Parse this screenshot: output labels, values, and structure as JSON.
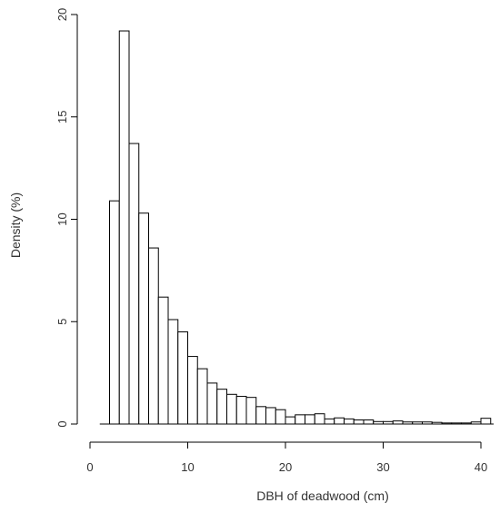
{
  "chart_data": {
    "type": "bar",
    "xlabel": "DBH of deadwood (cm)",
    "ylabel": "Density (%)",
    "xlim": [
      0,
      40
    ],
    "ylim": [
      0,
      20
    ],
    "xticks": [
      0,
      10,
      20,
      30,
      40
    ],
    "yticks": [
      0,
      5,
      10,
      15,
      20
    ],
    "xtick_labels": [
      "0",
      "10",
      "20",
      "30",
      "40"
    ],
    "ytick_labels": [
      "0",
      "5",
      "10",
      "15",
      "20"
    ],
    "bin_width": 1,
    "bin_starts": [
      2,
      3,
      4,
      5,
      6,
      7,
      8,
      9,
      10,
      11,
      12,
      13,
      14,
      15,
      16,
      17,
      18,
      19,
      20,
      21,
      22,
      23,
      24,
      25,
      26,
      27,
      28,
      29,
      30,
      31,
      32,
      33,
      34,
      35,
      36,
      37,
      38,
      39,
      40
    ],
    "values": [
      10.9,
      19.2,
      13.7,
      10.3,
      8.6,
      6.2,
      5.1,
      4.5,
      3.3,
      2.7,
      2.0,
      1.7,
      1.45,
      1.35,
      1.3,
      0.85,
      0.8,
      0.7,
      0.35,
      0.45,
      0.45,
      0.5,
      0.25,
      0.3,
      0.25,
      0.2,
      0.2,
      0.12,
      0.12,
      0.15,
      0.1,
      0.1,
      0.1,
      0.08,
      0.05,
      0.05,
      0.05,
      0.1,
      0.28
    ],
    "grid": false,
    "bar_fill": "#ffffff",
    "bar_stroke": "#000000"
  }
}
